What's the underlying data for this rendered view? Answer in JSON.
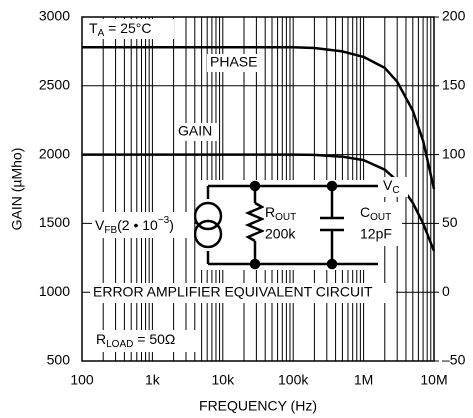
{
  "chart_data": {
    "type": "line",
    "xlabel": "FREQUENCY (Hz)",
    "ylabel": "GAIN (µMho)",
    "xscale": "log",
    "grid": true,
    "minor_grid": true,
    "xlim": [
      100,
      10000000
    ],
    "xticks": [
      100,
      {
        "value": 1000,
        "label": "1k"
      },
      {
        "value": 10000,
        "label": "10k"
      },
      {
        "value": 100000,
        "label": "100k"
      },
      {
        "value": 1000000,
        "label": "1M"
      },
      {
        "value": 10000000,
        "label": "10M"
      }
    ],
    "ylim": [
      500,
      3000
    ],
    "yticks": [
      500,
      1000,
      1500,
      2000,
      2500,
      3000
    ],
    "y2lim": [
      -50,
      200
    ],
    "y2ticks": [
      {
        "value": -50,
        "label": "–50"
      },
      0,
      50,
      100,
      150,
      200
    ],
    "x": [
      100,
      1000,
      10000,
      100000,
      200000,
      500000,
      1000000,
      2000000,
      3000000,
      5000000,
      7000000,
      10000000
    ],
    "series": [
      {
        "name": "GAIN",
        "color": "#000000",
        "values": [
          2000,
          2000,
          2000,
          2000,
          1998,
          1985,
          1960,
          1890,
          1810,
          1650,
          1500,
          1300
        ]
      },
      {
        "name": "PHASE",
        "color": "#000000",
        "axis": "y2",
        "values": [
          178,
          178,
          178,
          178,
          177.5,
          175,
          171,
          163,
          153,
          132,
          110,
          75
        ]
      }
    ],
    "annotations": {
      "temp": {
        "t": "T",
        "sub": "A",
        "rest": " = 25°C"
      },
      "vc": {
        "t": "V",
        "sub": "C"
      },
      "rout": {
        "t": "R",
        "sub": "OUT"
      },
      "rout_val": "200k",
      "cout": {
        "t": "C",
        "sub": "OUT"
      },
      "cout_val": "12pF",
      "vfb": {
        "t": "V",
        "sub": "FB",
        "rest": "(2 • 10",
        "sup": "−3",
        "end": ")"
      },
      "circuit": "ERROR AMPLIFIER EQUIVALENT CIRCUIT",
      "rload": {
        "t": "R",
        "sub": "LOAD",
        "rest": " = 50Ω"
      }
    }
  }
}
